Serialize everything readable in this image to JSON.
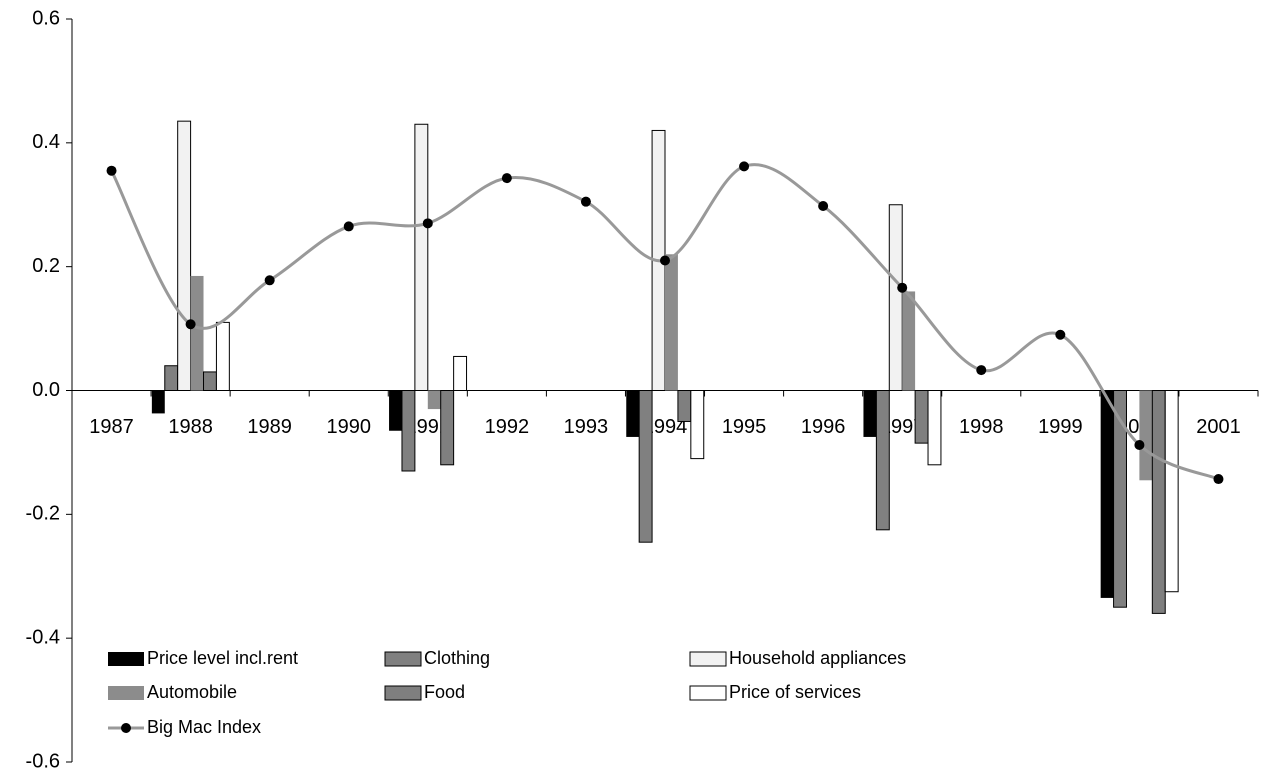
{
  "chart_data": {
    "type": "bar",
    "categories": [
      "1987",
      "1988",
      "1989",
      "1990",
      "1991",
      "1992",
      "1993",
      "1994",
      "1995",
      "1996",
      "1997",
      "1998",
      "1999",
      "2000",
      "2001"
    ],
    "ylim": [
      -0.6,
      0.6
    ],
    "yticks": [
      -0.6,
      -0.4,
      -0.2,
      {
        "value": 0,
        "label": "0.0"
      },
      0.2,
      0.4,
      0.6
    ],
    "series": [
      {
        "name": "Price level incl.rent",
        "color": "#000000",
        "values": [
          null,
          -0.037,
          null,
          null,
          -0.065,
          null,
          null,
          -0.075,
          null,
          null,
          -0.075,
          null,
          null,
          -0.335,
          null
        ]
      },
      {
        "name": "Clothing",
        "color": "#808080",
        "values": [
          null,
          0.04,
          null,
          null,
          -0.13,
          null,
          null,
          -0.245,
          null,
          null,
          -0.225,
          null,
          null,
          -0.35,
          null
        ]
      },
      {
        "name": "Household appliances",
        "color": "#f2f2f2",
        "values": [
          null,
          0.435,
          null,
          null,
          0.43,
          null,
          null,
          0.42,
          null,
          null,
          0.3,
          null,
          null,
          0,
          null
        ]
      },
      {
        "name": "Automobile",
        "color": "#8c8c8c",
        "values": [
          null,
          0.185,
          null,
          null,
          -0.03,
          null,
          null,
          0.22,
          null,
          null,
          0.16,
          null,
          null,
          -0.145,
          null
        ]
      },
      {
        "name": "Food",
        "color": "#7f7f7f",
        "values": [
          null,
          0.03,
          null,
          null,
          -0.12,
          null,
          null,
          -0.05,
          null,
          null,
          -0.085,
          null,
          null,
          -0.36,
          null
        ]
      },
      {
        "name": "Price of services",
        "color": "#ffffff",
        "values": [
          null,
          0.11,
          null,
          null,
          0.055,
          null,
          null,
          -0.11,
          null,
          null,
          -0.12,
          null,
          null,
          -0.325,
          null
        ]
      },
      {
        "name": "Big Mac Index",
        "type": "line",
        "color": "#999999",
        "values": [
          0.355,
          0.107,
          0.178,
          0.265,
          0.27,
          0.343,
          0.305,
          0.21,
          0.362,
          0.298,
          0.166,
          0.033,
          0.09,
          -0.088,
          -0.143
        ]
      }
    ]
  }
}
